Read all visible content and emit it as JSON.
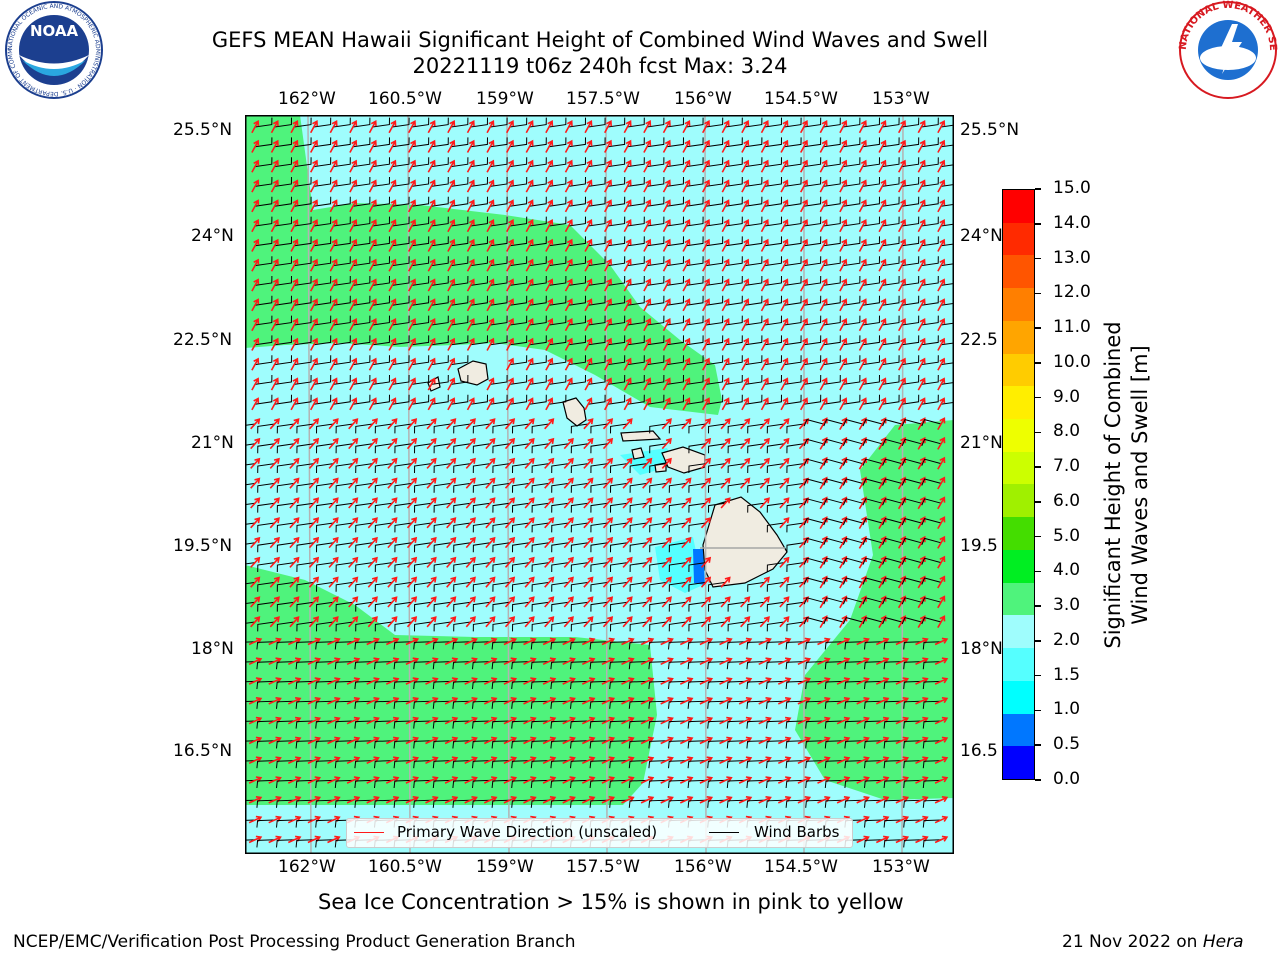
{
  "header": {
    "title_line1": "GEFS MEAN Hawaii Significant Height of Combined Wind Waves and Swell",
    "title_line2": "20221119 t06z 240h fcst   Max: 3.24"
  },
  "logos": {
    "noaa_text": "NOAA",
    "noaa_ring": "NATIONAL OCEANIC AND ATMOSPHERIC ADMINISTRATION · U.S. DEPARTMENT OF COMMERCE",
    "nws_ring": "NATIONAL WEATHER SERVICE"
  },
  "map": {
    "lon_labels": [
      "162°W",
      "160.5°W",
      "159°W",
      "157.5°W",
      "156°W",
      "154.5°W",
      "153°W"
    ],
    "lat_labels": [
      "25.5°N",
      "24°N",
      "22.5°N",
      "21°N",
      "19.5°N",
      "18°N",
      "16.5°N"
    ],
    "right_lat_labels": [
      "25.5°N",
      "24°N",
      "22.5",
      "21°N",
      "19.5",
      "18°N",
      "16.5"
    ],
    "ocean_color": "#9ffdfd",
    "swell_color": "#4ff37c",
    "land_color": "#f0ece1",
    "arrow_color": "#ff1a1a",
    "barb_color": "#000000"
  },
  "legend": {
    "wave_direction": "Primary Wave Direction (unscaled)",
    "wind_barbs": "Wind Barbs"
  },
  "colorbar": {
    "label_line1": "Significant Height of Combined",
    "label_line2": "Wind Waves and Swell [m]",
    "ticks": [
      "15.0",
      "14.0",
      "13.0",
      "12.0",
      "11.0",
      "10.0",
      "9.0",
      "8.0",
      "7.0",
      "6.0",
      "5.0",
      "4.0",
      "3.0",
      "2.0",
      "1.5",
      "1.0",
      "0.5",
      "0.0"
    ],
    "colors": [
      "#ff0000",
      "#ff2a00",
      "#ff5500",
      "#ff7f00",
      "#ffa500",
      "#ffcc00",
      "#ffee00",
      "#eeff00",
      "#ccff00",
      "#a0f000",
      "#44dd00",
      "#00ee22",
      "#4ff37c",
      "#9ffdfd",
      "#55ffff",
      "#00ffff",
      "#0077ff",
      "#0000ff"
    ]
  },
  "note": "Sea Ice Concentration > 15% is shown in pink to yellow",
  "footer": {
    "left": "NCEP/EMC/Verification Post Processing Product Generation Branch",
    "right_prefix": "21 Nov 2022 on ",
    "right_host": "Hera"
  }
}
